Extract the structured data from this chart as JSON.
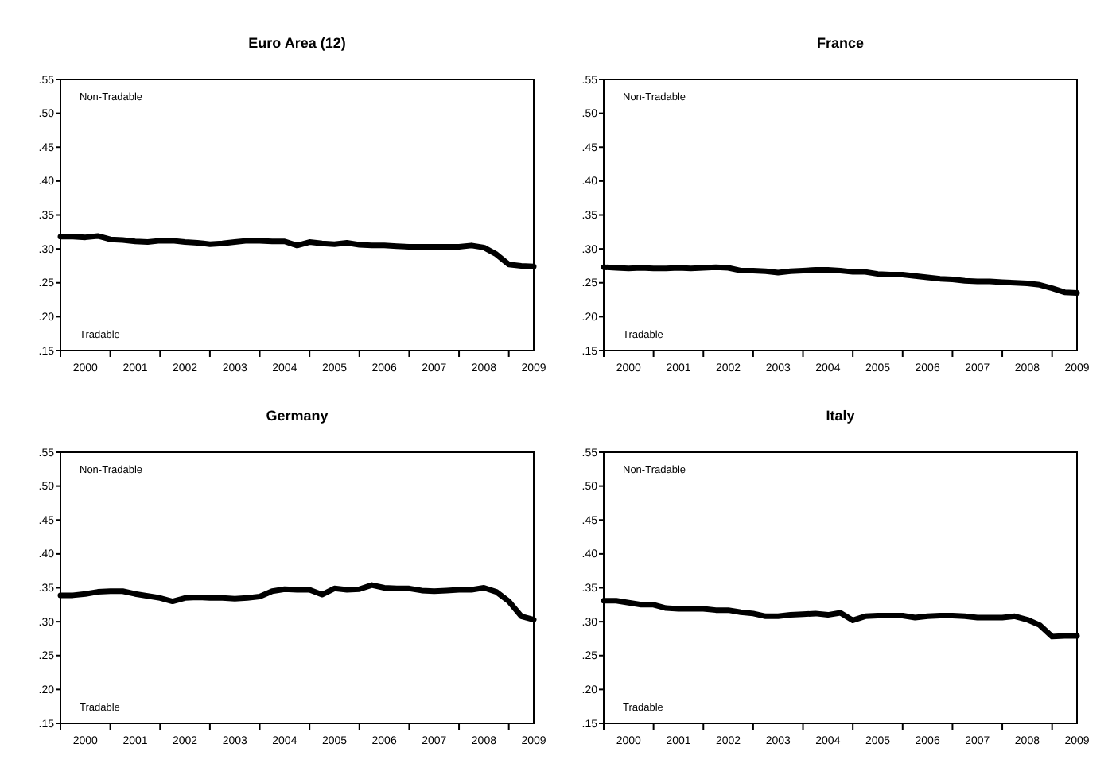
{
  "chart_data": [
    {
      "type": "line",
      "title": "Euro Area (12)",
      "annotations": [
        "Non-Tradable",
        "Tradable"
      ],
      "x": [
        2000,
        2000.25,
        2000.5,
        2000.75,
        2001,
        2001.25,
        2001.5,
        2001.75,
        2002,
        2002.25,
        2002.5,
        2002.75,
        2003,
        2003.25,
        2003.5,
        2003.75,
        2004,
        2004.25,
        2004.5,
        2004.75,
        2005,
        2005.25,
        2005.5,
        2005.75,
        2006,
        2006.25,
        2006.5,
        2006.75,
        2007,
        2007.25,
        2007.5,
        2007.75,
        2008,
        2008.25,
        2008.5,
        2008.75,
        2009,
        2009.25,
        2009.5
      ],
      "series": [
        {
          "color": "#000000",
          "values": [
            0.318,
            0.318,
            0.317,
            0.319,
            0.314,
            0.313,
            0.311,
            0.31,
            0.312,
            0.312,
            0.31,
            0.309,
            0.307,
            0.308,
            0.31,
            0.312,
            0.312,
            0.311,
            0.311,
            0.305,
            0.31,
            0.308,
            0.307,
            0.309,
            0.306,
            0.305,
            0.305,
            0.304,
            0.303,
            0.303,
            0.303,
            0.303,
            0.303,
            0.305,
            0.302,
            0.292,
            0.277,
            0.275,
            0.274
          ]
        }
      ],
      "xlim": [
        2000,
        2009.5
      ],
      "xticks": [
        {
          "value": 2000,
          "label": null
        },
        {
          "value": 2000.5,
          "label": "2000"
        },
        {
          "value": 2001,
          "label": null
        },
        {
          "value": 2001.5,
          "label": "2001"
        },
        {
          "value": 2002,
          "label": null
        },
        {
          "value": 2002.5,
          "label": "2002"
        },
        {
          "value": 2003,
          "label": null
        },
        {
          "value": 2003.5,
          "label": "2003"
        },
        {
          "value": 2004,
          "label": null
        },
        {
          "value": 2004.5,
          "label": "2004"
        },
        {
          "value": 2005,
          "label": null
        },
        {
          "value": 2005.5,
          "label": "2005"
        },
        {
          "value": 2006,
          "label": null
        },
        {
          "value": 2006.5,
          "label": "2006"
        },
        {
          "value": 2007,
          "label": null
        },
        {
          "value": 2007.5,
          "label": "2007"
        },
        {
          "value": 2008,
          "label": null
        },
        {
          "value": 2008.5,
          "label": "2008"
        },
        {
          "value": 2009,
          "label": null
        },
        {
          "value": 2009.5,
          "label": "2009"
        }
      ],
      "ylim": [
        0.15,
        0.55
      ],
      "yticks": [
        {
          "value": 0.15,
          "label": ".15"
        },
        {
          "value": 0.2,
          "label": ".20"
        },
        {
          "value": 0.25,
          "label": ".25"
        },
        {
          "value": 0.3,
          "label": ".30"
        },
        {
          "value": 0.35,
          "label": ".35"
        },
        {
          "value": 0.4,
          "label": ".40"
        },
        {
          "value": 0.45,
          "label": ".45"
        },
        {
          "value": 0.5,
          "label": ".50"
        },
        {
          "value": 0.55,
          "label": ".55"
        }
      ]
    },
    {
      "type": "line",
      "title": "France",
      "annotations": [
        "Non-Tradable",
        "Tradable"
      ],
      "x": [
        2000,
        2000.25,
        2000.5,
        2000.75,
        2001,
        2001.25,
        2001.5,
        2001.75,
        2002,
        2002.25,
        2002.5,
        2002.75,
        2003,
        2003.25,
        2003.5,
        2003.75,
        2004,
        2004.25,
        2004.5,
        2004.75,
        2005,
        2005.25,
        2005.5,
        2005.75,
        2006,
        2006.25,
        2006.5,
        2006.75,
        2007,
        2007.25,
        2007.5,
        2007.75,
        2008,
        2008.25,
        2008.5,
        2008.75,
        2009,
        2009.25,
        2009.5
      ],
      "series": [
        {
          "color": "#000000",
          "values": [
            0.273,
            0.272,
            0.271,
            0.272,
            0.271,
            0.271,
            0.272,
            0.271,
            0.272,
            0.273,
            0.272,
            0.268,
            0.268,
            0.267,
            0.265,
            0.267,
            0.268,
            0.269,
            0.269,
            0.268,
            0.266,
            0.266,
            0.263,
            0.262,
            0.262,
            0.26,
            0.258,
            0.256,
            0.255,
            0.253,
            0.252,
            0.252,
            0.251,
            0.25,
            0.249,
            0.247,
            0.242,
            0.236,
            0.235
          ]
        }
      ],
      "xlim": [
        2000,
        2009.5
      ],
      "xticks": [
        {
          "value": 2000,
          "label": null
        },
        {
          "value": 2000.5,
          "label": "2000"
        },
        {
          "value": 2001,
          "label": null
        },
        {
          "value": 2001.5,
          "label": "2001"
        },
        {
          "value": 2002,
          "label": null
        },
        {
          "value": 2002.5,
          "label": "2002"
        },
        {
          "value": 2003,
          "label": null
        },
        {
          "value": 2003.5,
          "label": "2003"
        },
        {
          "value": 2004,
          "label": null
        },
        {
          "value": 2004.5,
          "label": "2004"
        },
        {
          "value": 2005,
          "label": null
        },
        {
          "value": 2005.5,
          "label": "2005"
        },
        {
          "value": 2006,
          "label": null
        },
        {
          "value": 2006.5,
          "label": "2006"
        },
        {
          "value": 2007,
          "label": null
        },
        {
          "value": 2007.5,
          "label": "2007"
        },
        {
          "value": 2008,
          "label": null
        },
        {
          "value": 2008.5,
          "label": "2008"
        },
        {
          "value": 2009,
          "label": null
        },
        {
          "value": 2009.5,
          "label": "2009"
        }
      ],
      "ylim": [
        0.15,
        0.55
      ],
      "yticks": [
        {
          "value": 0.15,
          "label": ".15"
        },
        {
          "value": 0.2,
          "label": ".20"
        },
        {
          "value": 0.25,
          "label": ".25"
        },
        {
          "value": 0.3,
          "label": ".30"
        },
        {
          "value": 0.35,
          "label": ".35"
        },
        {
          "value": 0.4,
          "label": ".40"
        },
        {
          "value": 0.45,
          "label": ".45"
        },
        {
          "value": 0.5,
          "label": ".50"
        },
        {
          "value": 0.55,
          "label": ".55"
        }
      ]
    },
    {
      "type": "line",
      "title": "Germany",
      "annotations": [
        "Non-Tradable",
        "Tradable"
      ],
      "x": [
        2000,
        2000.25,
        2000.5,
        2000.75,
        2001,
        2001.25,
        2001.5,
        2001.75,
        2002,
        2002.25,
        2002.5,
        2002.75,
        2003,
        2003.25,
        2003.5,
        2003.75,
        2004,
        2004.25,
        2004.5,
        2004.75,
        2005,
        2005.25,
        2005.5,
        2005.75,
        2006,
        2006.25,
        2006.5,
        2006.75,
        2007,
        2007.25,
        2007.5,
        2007.75,
        2008,
        2008.25,
        2008.5,
        2008.75,
        2009,
        2009.25,
        2009.5
      ],
      "series": [
        {
          "color": "#000000",
          "values": [
            0.339,
            0.339,
            0.341,
            0.344,
            0.345,
            0.345,
            0.341,
            0.338,
            0.335,
            0.33,
            0.335,
            0.336,
            0.335,
            0.335,
            0.334,
            0.335,
            0.337,
            0.345,
            0.348,
            0.347,
            0.347,
            0.34,
            0.349,
            0.347,
            0.348,
            0.354,
            0.35,
            0.349,
            0.349,
            0.346,
            0.345,
            0.346,
            0.347,
            0.347,
            0.35,
            0.344,
            0.33,
            0.308,
            0.303
          ]
        }
      ],
      "xlim": [
        2000,
        2009.5
      ],
      "xticks": [
        {
          "value": 2000,
          "label": null
        },
        {
          "value": 2000.5,
          "label": "2000"
        },
        {
          "value": 2001,
          "label": null
        },
        {
          "value": 2001.5,
          "label": "2001"
        },
        {
          "value": 2002,
          "label": null
        },
        {
          "value": 2002.5,
          "label": "2002"
        },
        {
          "value": 2003,
          "label": null
        },
        {
          "value": 2003.5,
          "label": "2003"
        },
        {
          "value": 2004,
          "label": null
        },
        {
          "value": 2004.5,
          "label": "2004"
        },
        {
          "value": 2005,
          "label": null
        },
        {
          "value": 2005.5,
          "label": "2005"
        },
        {
          "value": 2006,
          "label": null
        },
        {
          "value": 2006.5,
          "label": "2006"
        },
        {
          "value": 2007,
          "label": null
        },
        {
          "value": 2007.5,
          "label": "2007"
        },
        {
          "value": 2008,
          "label": null
        },
        {
          "value": 2008.5,
          "label": "2008"
        },
        {
          "value": 2009,
          "label": null
        },
        {
          "value": 2009.5,
          "label": "2009"
        }
      ],
      "ylim": [
        0.15,
        0.55
      ],
      "yticks": [
        {
          "value": 0.15,
          "label": ".15"
        },
        {
          "value": 0.2,
          "label": ".20"
        },
        {
          "value": 0.25,
          "label": ".25"
        },
        {
          "value": 0.3,
          "label": ".30"
        },
        {
          "value": 0.35,
          "label": ".35"
        },
        {
          "value": 0.4,
          "label": ".40"
        },
        {
          "value": 0.45,
          "label": ".45"
        },
        {
          "value": 0.5,
          "label": ".50"
        },
        {
          "value": 0.55,
          "label": ".55"
        }
      ]
    },
    {
      "type": "line",
      "title": "Italy",
      "annotations": [
        "Non-Tradable",
        "Tradable"
      ],
      "x": [
        2000,
        2000.25,
        2000.5,
        2000.75,
        2001,
        2001.25,
        2001.5,
        2001.75,
        2002,
        2002.25,
        2002.5,
        2002.75,
        2003,
        2003.25,
        2003.5,
        2003.75,
        2004,
        2004.25,
        2004.5,
        2004.75,
        2005,
        2005.25,
        2005.5,
        2005.75,
        2006,
        2006.25,
        2006.5,
        2006.75,
        2007,
        2007.25,
        2007.5,
        2007.75,
        2008,
        2008.25,
        2008.5,
        2008.75,
        2009,
        2009.25,
        2009.5
      ],
      "series": [
        {
          "color": "#000000",
          "values": [
            0.331,
            0.331,
            0.328,
            0.325,
            0.325,
            0.32,
            0.319,
            0.319,
            0.319,
            0.317,
            0.317,
            0.314,
            0.312,
            0.308,
            0.308,
            0.31,
            0.311,
            0.312,
            0.31,
            0.313,
            0.302,
            0.308,
            0.309,
            0.309,
            0.309,
            0.306,
            0.308,
            0.309,
            0.309,
            0.308,
            0.306,
            0.306,
            0.306,
            0.308,
            0.303,
            0.295,
            0.278,
            0.279,
            0.279
          ]
        }
      ],
      "xlim": [
        2000,
        2009.5
      ],
      "xticks": [
        {
          "value": 2000,
          "label": null
        },
        {
          "value": 2000.5,
          "label": "2000"
        },
        {
          "value": 2001,
          "label": null
        },
        {
          "value": 2001.5,
          "label": "2001"
        },
        {
          "value": 2002,
          "label": null
        },
        {
          "value": 2002.5,
          "label": "2002"
        },
        {
          "value": 2003,
          "label": null
        },
        {
          "value": 2003.5,
          "label": "2003"
        },
        {
          "value": 2004,
          "label": null
        },
        {
          "value": 2004.5,
          "label": "2004"
        },
        {
          "value": 2005,
          "label": null
        },
        {
          "value": 2005.5,
          "label": "2005"
        },
        {
          "value": 2006,
          "label": null
        },
        {
          "value": 2006.5,
          "label": "2006"
        },
        {
          "value": 2007,
          "label": null
        },
        {
          "value": 2007.5,
          "label": "2007"
        },
        {
          "value": 2008,
          "label": null
        },
        {
          "value": 2008.5,
          "label": "2008"
        },
        {
          "value": 2009,
          "label": null
        },
        {
          "value": 2009.5,
          "label": "2009"
        }
      ],
      "ylim": [
        0.15,
        0.55
      ],
      "yticks": [
        {
          "value": 0.15,
          "label": ".15"
        },
        {
          "value": 0.2,
          "label": ".20"
        },
        {
          "value": 0.25,
          "label": ".25"
        },
        {
          "value": 0.3,
          "label": ".30"
        },
        {
          "value": 0.35,
          "label": ".35"
        },
        {
          "value": 0.4,
          "label": ".40"
        },
        {
          "value": 0.45,
          "label": ".45"
        },
        {
          "value": 0.5,
          "label": ".50"
        },
        {
          "value": 0.55,
          "label": ".55"
        }
      ]
    }
  ]
}
